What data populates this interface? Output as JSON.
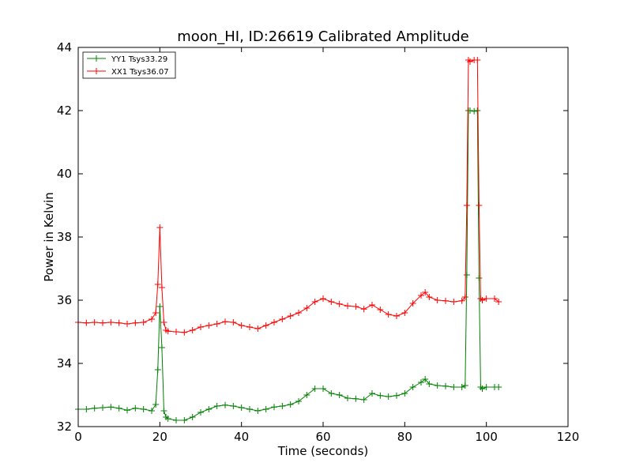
{
  "chart_data": {
    "type": "line",
    "title": "moon_HI, ID:26619 Calibrated Amplitude",
    "xlabel": "Time (seconds)",
    "ylabel": "Power in Kelvin",
    "xlim": [
      0,
      120
    ],
    "ylim": [
      32,
      44
    ],
    "xticks": [
      0,
      20,
      40,
      60,
      80,
      100,
      120
    ],
    "yticks": [
      32,
      34,
      36,
      38,
      40,
      42,
      44
    ],
    "grid": false,
    "legend_position": "top-left",
    "marker": "+",
    "series": [
      {
        "name": "YY1 Tsys33.29",
        "color": "#008000",
        "x": [
          0,
          2,
          4,
          6,
          8,
          10,
          12,
          14,
          16,
          18,
          19,
          19.5,
          20,
          20.5,
          21,
          21.5,
          22,
          24,
          26,
          28,
          30,
          32,
          34,
          36,
          38,
          40,
          42,
          44,
          46,
          48,
          50,
          52,
          54,
          56,
          58,
          60,
          62,
          64,
          66,
          68,
          70,
          72,
          74,
          76,
          78,
          80,
          82,
          84,
          85,
          86,
          88,
          90,
          92,
          94,
          94.8,
          95.2,
          95.6,
          96,
          97,
          97.8,
          98.2,
          98.6,
          99,
          100,
          102,
          103
        ],
        "y": [
          32.55,
          32.55,
          32.58,
          32.6,
          32.62,
          32.58,
          32.52,
          32.58,
          32.55,
          32.5,
          32.7,
          33.8,
          35.8,
          34.5,
          32.5,
          32.3,
          32.25,
          32.2,
          32.2,
          32.3,
          32.45,
          32.55,
          32.65,
          32.68,
          32.65,
          32.6,
          32.55,
          32.5,
          32.55,
          32.62,
          32.65,
          32.7,
          32.8,
          33.0,
          33.2,
          33.2,
          33.05,
          33.0,
          32.9,
          32.88,
          32.85,
          33.05,
          32.98,
          32.95,
          32.98,
          33.05,
          33.25,
          33.4,
          33.5,
          33.35,
          33.3,
          33.28,
          33.25,
          33.25,
          33.3,
          36.8,
          42.0,
          42.0,
          41.98,
          42.0,
          36.7,
          33.25,
          33.2,
          33.25,
          33.25,
          33.25
        ]
      },
      {
        "name": "XX1 Tsys36.07",
        "color": "#ff0000",
        "x": [
          0,
          2,
          4,
          6,
          8,
          10,
          12,
          14,
          16,
          18,
          19,
          19.5,
          20,
          20.5,
          21,
          21.5,
          22,
          24,
          26,
          28,
          30,
          32,
          34,
          36,
          38,
          40,
          42,
          44,
          46,
          48,
          50,
          52,
          54,
          56,
          58,
          60,
          62,
          64,
          66,
          68,
          70,
          72,
          74,
          76,
          78,
          80,
          82,
          84,
          85,
          86,
          88,
          90,
          92,
          94,
          94.8,
          95.2,
          95.6,
          96,
          97,
          97.8,
          98.2,
          98.6,
          99,
          100,
          102,
          103
        ],
        "y": [
          35.3,
          35.28,
          35.3,
          35.28,
          35.3,
          35.28,
          35.25,
          35.28,
          35.3,
          35.4,
          35.6,
          36.5,
          38.3,
          36.4,
          35.3,
          35.05,
          35.02,
          35.0,
          34.98,
          35.05,
          35.15,
          35.2,
          35.25,
          35.32,
          35.3,
          35.2,
          35.15,
          35.1,
          35.2,
          35.3,
          35.4,
          35.5,
          35.6,
          35.75,
          35.95,
          36.05,
          35.95,
          35.88,
          35.82,
          35.8,
          35.72,
          35.85,
          35.7,
          35.55,
          35.5,
          35.6,
          35.9,
          36.15,
          36.25,
          36.1,
          36.0,
          35.98,
          35.95,
          35.98,
          36.1,
          39.0,
          43.6,
          43.55,
          43.6,
          43.6,
          39.0,
          36.05,
          36.0,
          36.05,
          36.05,
          35.95
        ]
      }
    ]
  }
}
